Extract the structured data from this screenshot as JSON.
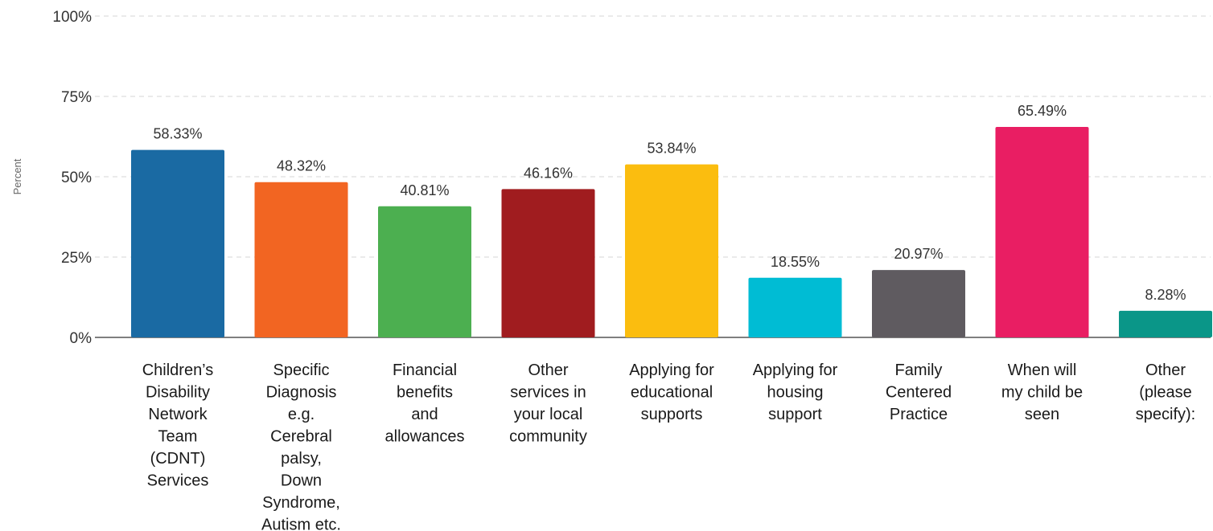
{
  "chart_data": {
    "type": "bar",
    "ylabel": "Percent",
    "ylim": [
      0,
      100
    ],
    "yticks": [
      "0%",
      "25%",
      "50%",
      "75%",
      "100%"
    ],
    "yticks_values": [
      0,
      25,
      50,
      75,
      100
    ],
    "grid": true,
    "categories": [
      [
        "Children’s",
        "Disability",
        "Network",
        "Team",
        "(CDNT)",
        "Services"
      ],
      [
        "Specific",
        "Diagnosis",
        "e.g.",
        "Cerebral",
        "palsy,",
        "Down",
        "Syndrome,",
        "Autism etc."
      ],
      [
        "Financial",
        "benefits",
        "and",
        "allowances"
      ],
      [
        "Other",
        "services in",
        "your local",
        "community"
      ],
      [
        "Applying for",
        "educational",
        "supports"
      ],
      [
        "Applying for",
        "housing",
        "support"
      ],
      [
        "Family",
        "Centered",
        "Practice"
      ],
      [
        "When will",
        "my child be",
        "seen"
      ],
      [
        "Other",
        "(please",
        "specify):"
      ]
    ],
    "values": [
      58.33,
      48.32,
      40.81,
      46.16,
      53.84,
      18.55,
      20.97,
      65.49,
      8.28
    ],
    "value_labels": [
      "58.33%",
      "48.32%",
      "40.81%",
      "46.16%",
      "53.84%",
      "18.55%",
      "20.97%",
      "65.49%",
      "8.28%"
    ],
    "colors": [
      "#1a6aa3",
      "#f26522",
      "#4caf50",
      "#a01c1f",
      "#fbbd0f",
      "#00bcd4",
      "#5f5b60",
      "#e91e63",
      "#0a9688"
    ]
  }
}
